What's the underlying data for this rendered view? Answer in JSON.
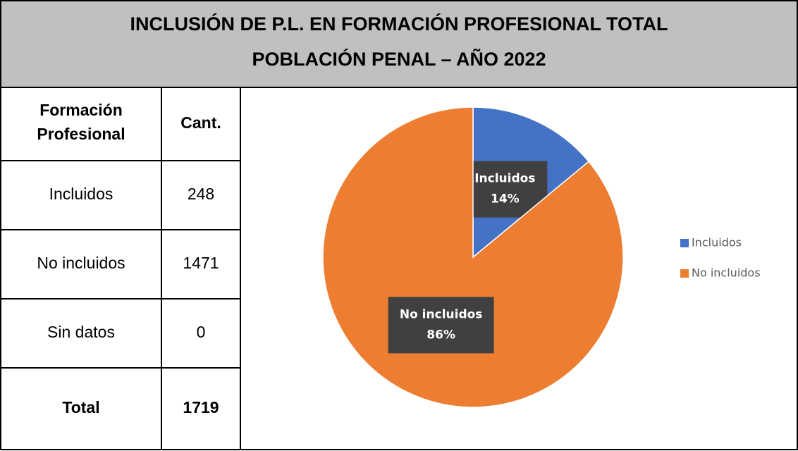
{
  "header": {
    "title": [
      "INCLUSIÓN DE P.L. EN FORMACIÓN PROFESIONAL TOTAL",
      "POBLACIÓN PENAL – AÑO 2022"
    ]
  },
  "table": {
    "header": [
      [
        "Formación",
        "Profesional"
      ],
      "Cant."
    ],
    "rows": [
      [
        "Incluidos",
        248
      ],
      [
        "No incluidos",
        1471
      ],
      [
        "Sin datos",
        0
      ],
      [
        "Total",
        1719
      ]
    ]
  },
  "chart_data": {
    "type": "pie",
    "categories": [
      "Incluidos",
      "No incluidos"
    ],
    "values": [
      14,
      86
    ],
    "value_labels": [
      "14%",
      "86%"
    ],
    "colors": [
      "#4472c4",
      "#ed7d31"
    ],
    "legend": "right"
  }
}
